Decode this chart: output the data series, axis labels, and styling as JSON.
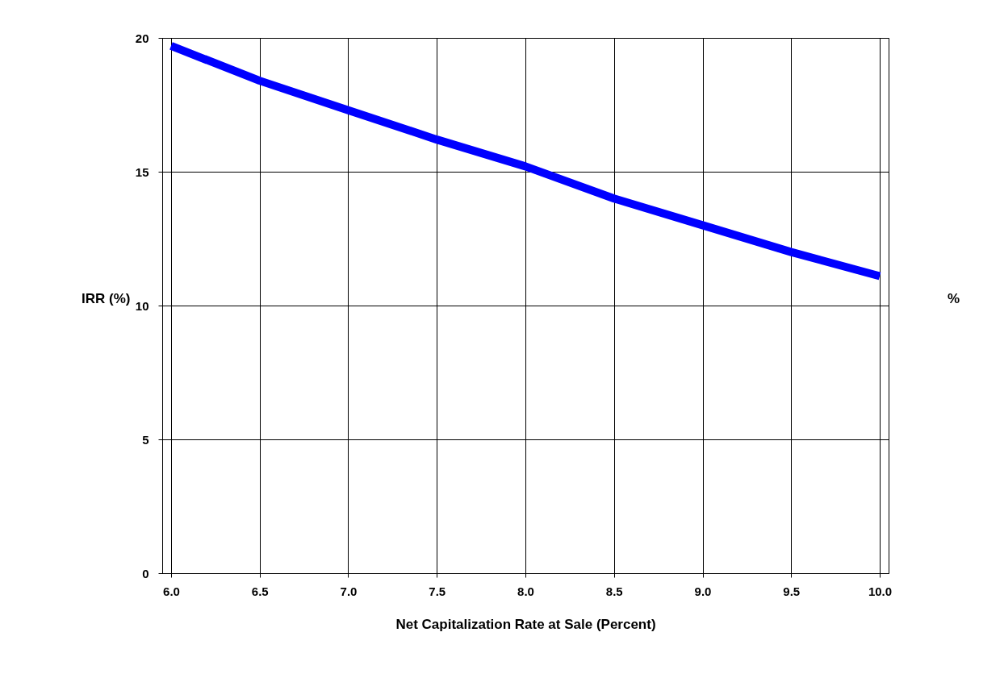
{
  "chart_data": {
    "type": "line",
    "xlabel": "Net Capitalization Rate at Sale (Percent)",
    "ylabel": "IRR (%)",
    "y2label": "%",
    "categories": [
      "6.0",
      "6.5",
      "7.0",
      "7.5",
      "8.0",
      "8.5",
      "9.0",
      "9.5",
      "10.0"
    ],
    "series": [
      {
        "color": "#0000ff",
        "values": [
          19.7,
          18.4,
          17.3,
          16.2,
          15.2,
          14.0,
          13.0,
          12.0,
          11.1
        ]
      }
    ],
    "ylim": [
      0,
      20
    ],
    "yticks": [
      0,
      5,
      10,
      15,
      20
    ],
    "grid": true,
    "legend": false,
    "marker": "none",
    "line_style": "solid"
  }
}
